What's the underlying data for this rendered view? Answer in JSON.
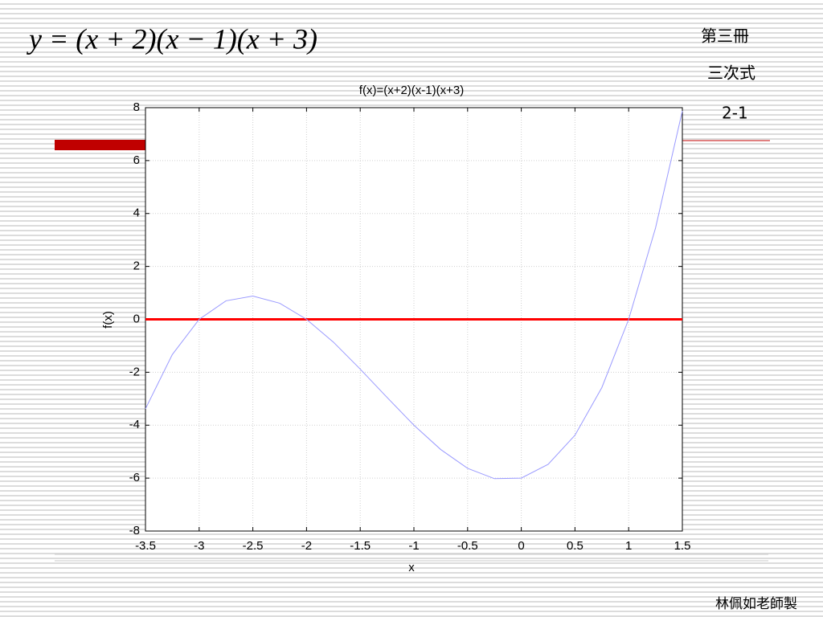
{
  "slide": {
    "formula": "y = (x + 2)(x − 1)(x + 3)",
    "book": "第三冊",
    "topic": "三次式",
    "section": "2-1",
    "author": "林佩如老師製"
  },
  "chart_data": {
    "type": "line",
    "title": "f(x)=(x+2)(x-1)(x+3)",
    "x_label": "x",
    "y_label": "f(x)",
    "x": [
      -3.5,
      -3.25,
      -3,
      -2.75,
      -2.5,
      -2.25,
      -2,
      -1.75,
      -1.5,
      -1.25,
      -1,
      -0.75,
      -0.5,
      -0.25,
      0,
      0.25,
      0.5,
      0.75,
      1,
      1.25,
      1.5
    ],
    "series": [
      {
        "color": "#9a9aff",
        "values": [
          -3.38,
          -1.33,
          0,
          0.7,
          0.88,
          0.61,
          0,
          -0.86,
          -1.88,
          -2.95,
          -4,
          -4.92,
          -5.63,
          -6.02,
          -6,
          -5.48,
          -4.38,
          -2.58,
          0,
          3.45,
          7.88
        ]
      }
    ],
    "hlines": [
      {
        "value": 0,
        "color": "#ff0000"
      }
    ],
    "xlim": [
      -3.5,
      1.5
    ],
    "ylim": [
      -8,
      8
    ],
    "xticks": [
      -3.5,
      -3,
      -2.5,
      -2,
      -1.5,
      -1,
      -0.5,
      0,
      0.5,
      1,
      1.5
    ],
    "yticks": [
      -8,
      -6,
      -4,
      -2,
      0,
      2,
      4,
      6,
      8
    ],
    "grid": true
  }
}
